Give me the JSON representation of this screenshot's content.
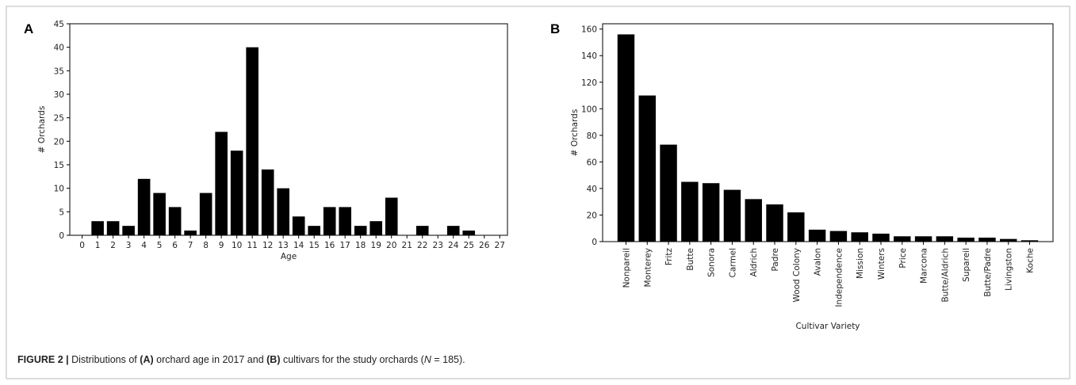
{
  "chart_data": [
    {
      "type": "bar",
      "panel": "A",
      "xlabel": "Age",
      "ylabel": "# Orchards",
      "color": "#000000",
      "x": [
        0,
        1,
        2,
        3,
        4,
        5,
        6,
        7,
        8,
        9,
        10,
        11,
        12,
        13,
        14,
        15,
        16,
        17,
        18,
        19,
        20,
        21,
        22,
        23,
        24,
        25,
        26,
        27
      ],
      "values": [
        0,
        3,
        3,
        2,
        12,
        9,
        6,
        1,
        9,
        22,
        18,
        40,
        14,
        10,
        4,
        2,
        6,
        6,
        2,
        3,
        8,
        0,
        2,
        0,
        2,
        1,
        0,
        0
      ],
      "xlim": [
        -0.8,
        27.5
      ],
      "xticks": [
        0,
        1,
        2,
        3,
        4,
        5,
        6,
        7,
        8,
        9,
        10,
        11,
        12,
        13,
        14,
        15,
        16,
        17,
        18,
        19,
        20,
        21,
        22,
        23,
        24,
        25,
        26,
        27
      ],
      "ylim": [
        0,
        45
      ],
      "yticks": [
        0,
        5,
        10,
        15,
        20,
        25,
        30,
        35,
        40,
        45
      ]
    },
    {
      "type": "bar",
      "panel": "B",
      "xlabel": "Cultivar Variety",
      "ylabel": "# Orchards",
      "color": "#000000",
      "categories": [
        "Nonpareil",
        "Monterey",
        "Fritz",
        "Butte",
        "Sonora",
        "Carmel",
        "Aldrich",
        "Padre",
        "Wood Colony",
        "Avalon",
        "Independence",
        "Mission",
        "Winters",
        "Price",
        "Marcona",
        "Butte/Aldrich",
        "Supareil",
        "Butte/Padre",
        "Livingston",
        "Koche"
      ],
      "values": [
        156,
        110,
        73,
        45,
        44,
        39,
        32,
        28,
        22,
        9,
        8,
        7,
        6,
        4,
        4,
        4,
        3,
        3,
        2,
        1
      ],
      "ylim": [
        0,
        164
      ],
      "yticks": [
        0,
        20,
        40,
        60,
        80,
        100,
        120,
        140,
        160
      ]
    }
  ],
  "caption": [
    "FIGURE 2 |",
    "Distributions of",
    "(A)",
    "orchard age in 2017 and",
    "(B)",
    "cultivars for the study orchards (",
    "N",
    "= 185)."
  ]
}
